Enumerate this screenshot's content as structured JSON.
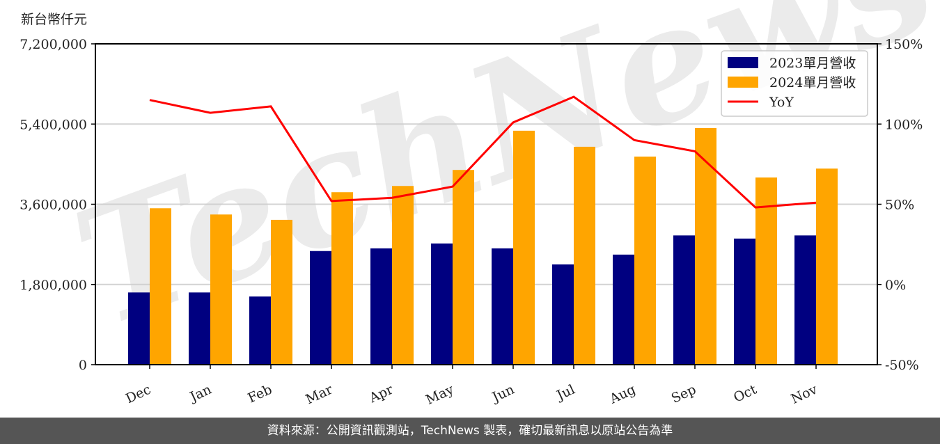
{
  "footer": {
    "source_text": "資料來源：公開資訊觀測站，TechNews 製表，確切最新訊息以原站公告為準"
  },
  "watermark": "TechNews",
  "chart_data": {
    "type": "bar",
    "title": "",
    "ylabel": "新台幣仟元",
    "ylabel_right": "",
    "xlabel": "",
    "categories": [
      "Dec",
      "Jan",
      "Feb",
      "Mar",
      "Apr",
      "May",
      "Jun",
      "Jul",
      "Aug",
      "Sep",
      "Oct",
      "Nov"
    ],
    "series": [
      {
        "name": "2023單月營收",
        "type": "bar",
        "axis": "left",
        "color": "#000080",
        "values": [
          1620000,
          1620000,
          1530000,
          2550000,
          2610000,
          2720000,
          2610000,
          2250000,
          2470000,
          2900000,
          2830000,
          2900000
        ]
      },
      {
        "name": "2024單月營收",
        "type": "bar",
        "axis": "left",
        "color": "#FFA500",
        "values": [
          3510000,
          3370000,
          3250000,
          3870000,
          4010000,
          4370000,
          5250000,
          4890000,
          4670000,
          5310000,
          4200000,
          4400000
        ]
      },
      {
        "name": "YoY",
        "type": "line",
        "axis": "right",
        "color": "#FF0000",
        "values": [
          115,
          107,
          111,
          52,
          54,
          61,
          101,
          117,
          90,
          83,
          48,
          51
        ]
      }
    ],
    "ylim": [
      0,
      7200000
    ],
    "yticks": [
      0,
      1800000,
      3600000,
      5400000,
      7200000
    ],
    "ytick_labels": [
      "0",
      "1,800,000",
      "3,600,000",
      "5,400,000",
      "7,200,000"
    ],
    "ylim_right": [
      -50,
      150
    ],
    "yticks_right": [
      -50,
      0,
      50,
      100,
      150
    ],
    "ytick_labels_right": [
      "-50%",
      "0%",
      "50%",
      "100%",
      "150%"
    ],
    "grid": true,
    "legend_position": "upper right"
  }
}
